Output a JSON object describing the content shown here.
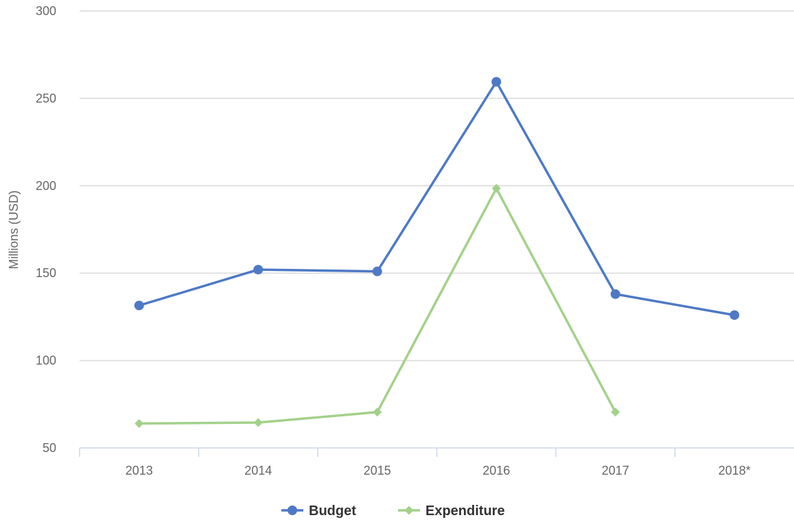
{
  "chart_data": {
    "type": "line",
    "title": "",
    "xlabel": "",
    "ylabel": "Millions (USD)",
    "categories": [
      "2013",
      "2014",
      "2015",
      "2016",
      "2017",
      "2018*"
    ],
    "ylim": [
      50,
      300
    ],
    "yticks": [
      50,
      100,
      150,
      200,
      250,
      300
    ],
    "grid": true,
    "legend_position": "bottom-center",
    "series": [
      {
        "name": "Budget",
        "color": "#4e79c5",
        "marker": "circle",
        "values": [
          131.5,
          152,
          151,
          259.5,
          138,
          126
        ]
      },
      {
        "name": "Expenditure",
        "color": "#a3d18a",
        "marker": "diamond",
        "values": [
          64,
          64.5,
          70.5,
          198.5,
          70.5,
          null
        ]
      }
    ]
  }
}
